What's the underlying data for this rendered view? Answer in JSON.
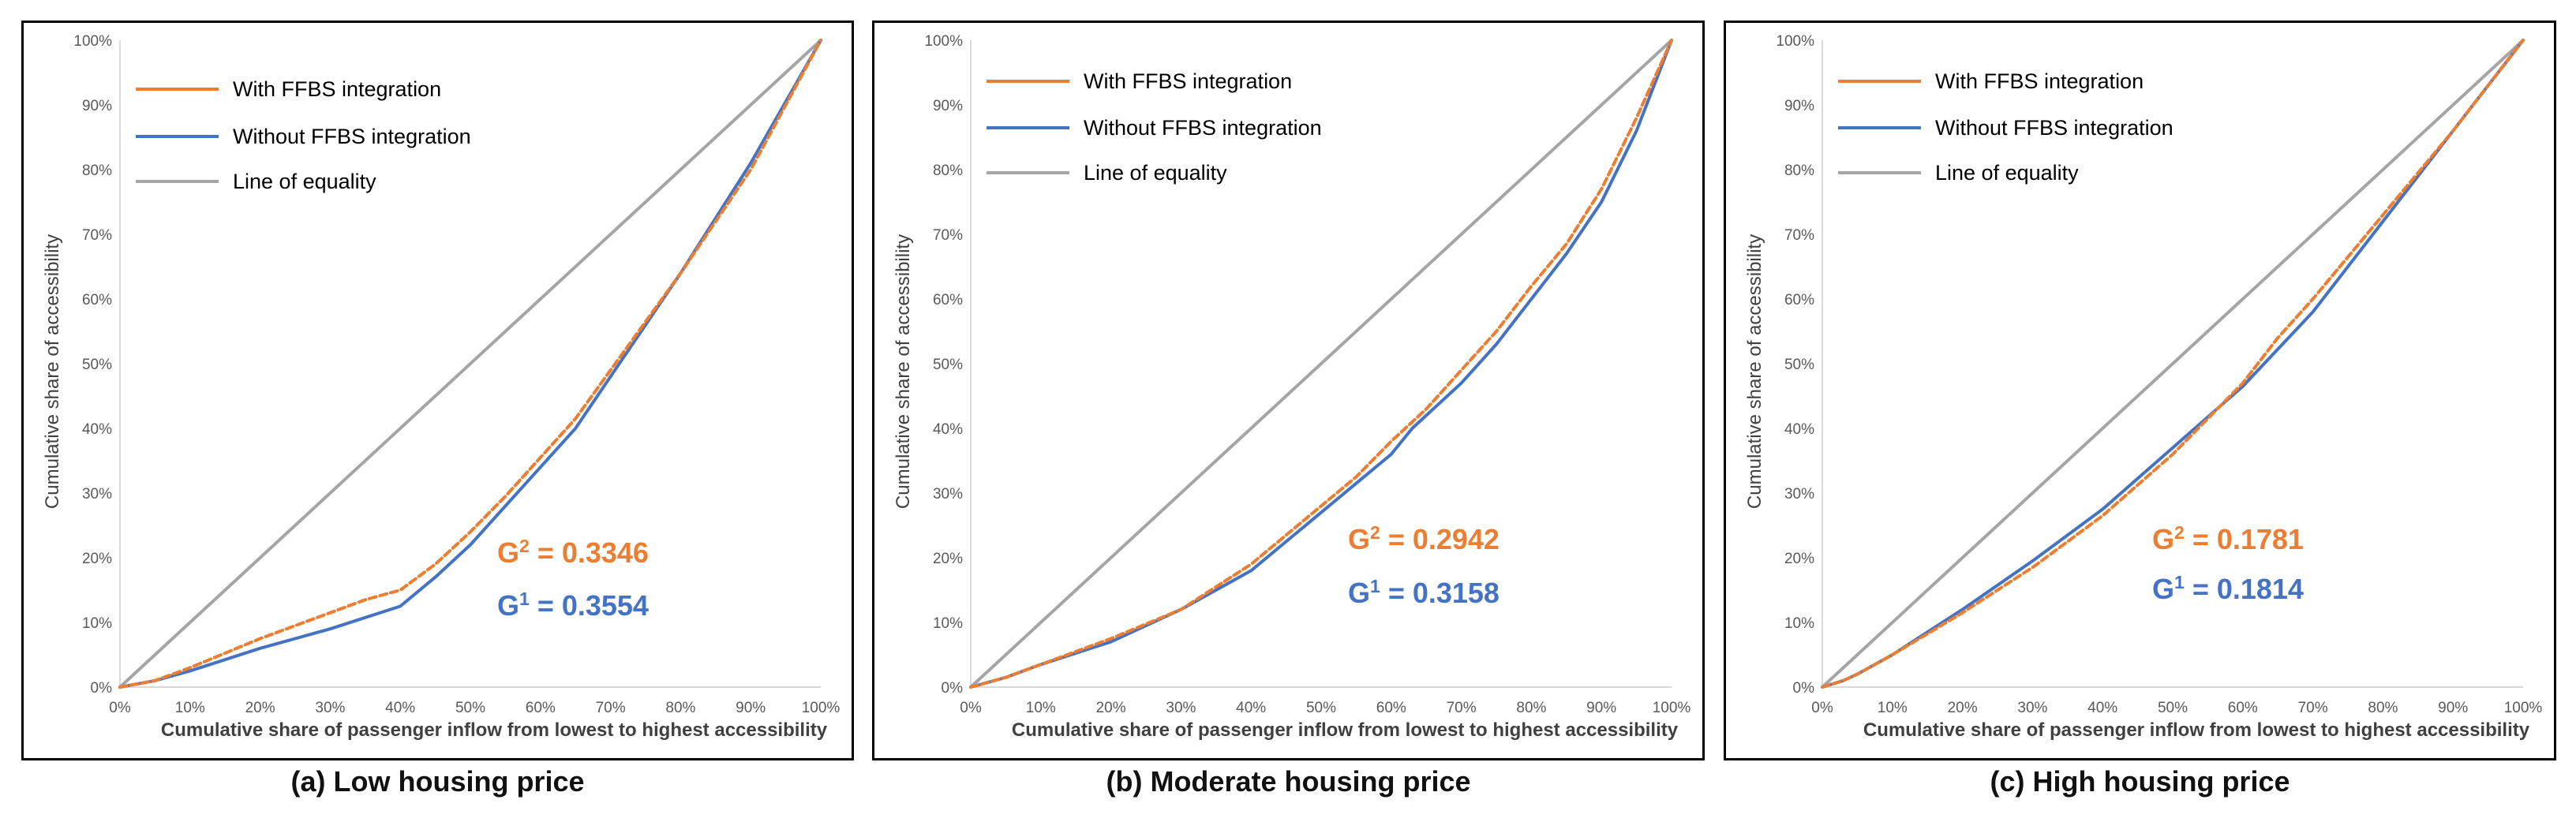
{
  "colors": {
    "with": "#ED7D31",
    "without": "#4472C4",
    "equality": "#A5A5A5",
    "text": "#404040"
  },
  "chart_data": [
    {
      "type": "line",
      "caption": "(a) Low housing price",
      "xlabel": "Cumulative share of passenger inflow from lowest to highest accessibility",
      "ylabel": "Cumulative share of accessibility",
      "xlim": [
        0,
        100
      ],
      "ylim": [
        0,
        100
      ],
      "xticks": [
        "0%",
        "10%",
        "20%",
        "30%",
        "40%",
        "50%",
        "60%",
        "70%",
        "80%",
        "90%",
        "100%"
      ],
      "yticks": [
        "0%",
        "10%",
        "20%",
        "30%",
        "40%",
        "50%",
        "60%",
        "70%",
        "80%",
        "90%",
        "100%"
      ],
      "legend": [
        "With FFBS integration",
        "Without FFBS integration",
        "Line of equality"
      ],
      "series": [
        {
          "name": "With FFBS integration",
          "style": "dashed",
          "x": [
            0,
            5,
            10,
            20,
            30,
            35,
            40,
            45,
            50,
            55,
            60,
            65,
            70,
            80,
            90,
            100
          ],
          "y": [
            0,
            1,
            3,
            7.5,
            11.5,
            13.5,
            15,
            19,
            24,
            29.5,
            35.5,
            41.5,
            49,
            64,
            80,
            100
          ]
        },
        {
          "name": "Without FFBS integration",
          "style": "solid",
          "x": [
            0,
            5,
            10,
            20,
            30,
            40,
            45,
            50,
            55,
            60,
            65,
            70,
            80,
            90,
            100
          ],
          "y": [
            0,
            1,
            2.5,
            6,
            9,
            12.5,
            17,
            22,
            28,
            34,
            40,
            48,
            64,
            81,
            100
          ]
        },
        {
          "name": "Line of equality",
          "style": "solid",
          "x": [
            0,
            100
          ],
          "y": [
            0,
            100
          ]
        }
      ],
      "annotations": {
        "g2_label": "G",
        "g2_sup": "2",
        "g2_value": "= 0.3346",
        "g1_label": "G",
        "g1_sup": "1",
        "g1_value": "= 0.3554"
      }
    },
    {
      "type": "line",
      "caption": "(b) Moderate housing price",
      "xlabel": "Cumulative share of passenger inflow from lowest to highest accessibility",
      "ylabel": "Cumulative share of accessibility",
      "xlim": [
        0,
        100
      ],
      "ylim": [
        0,
        100
      ],
      "xticks": [
        "0%",
        "10%",
        "20%",
        "30%",
        "40%",
        "50%",
        "60%",
        "70%",
        "80%",
        "90%",
        "100%"
      ],
      "yticks": [
        "0%",
        "10%",
        "20%",
        "30%",
        "40%",
        "50%",
        "60%",
        "70%",
        "80%",
        "90%",
        "100%"
      ],
      "legend": [
        "With FFBS integration",
        "Without FFBS integration",
        "Line of equality"
      ],
      "series": [
        {
          "name": "With FFBS integration",
          "style": "dashed",
          "x": [
            0,
            5,
            10,
            20,
            30,
            40,
            45,
            50,
            55,
            60,
            65,
            70,
            75,
            80,
            85,
            90,
            95,
            100
          ],
          "y": [
            0,
            1.5,
            3.5,
            7.5,
            12,
            19,
            23.5,
            28,
            32.5,
            38,
            43,
            49,
            55,
            62,
            68.5,
            77,
            88,
            100
          ]
        },
        {
          "name": "Without FFBS integration",
          "style": "solid",
          "x": [
            0,
            5,
            10,
            20,
            30,
            40,
            45,
            50,
            55,
            60,
            63,
            70,
            75,
            80,
            85,
            90,
            95,
            100
          ],
          "y": [
            0,
            1.5,
            3.5,
            7,
            12,
            18,
            22.5,
            27,
            31.5,
            36,
            40,
            47,
            53,
            60,
            67,
            75,
            86,
            100
          ]
        },
        {
          "name": "Line of equality",
          "style": "solid",
          "x": [
            0,
            100
          ],
          "y": [
            0,
            100
          ]
        }
      ],
      "annotations": {
        "g2_label": "G",
        "g2_sup": "2",
        "g2_value": "= 0.2942",
        "g1_label": "G",
        "g1_sup": "1",
        "g1_value": "= 0.3158"
      }
    },
    {
      "type": "line",
      "caption": "(c) High housing price",
      "xlabel": "Cumulative share of passenger inflow from lowest to highest accessibility",
      "ylabel": "Cumulative share of accessibility",
      "xlim": [
        0,
        100
      ],
      "ylim": [
        0,
        100
      ],
      "xticks": [
        "0%",
        "10%",
        "20%",
        "30%",
        "40%",
        "50%",
        "60%",
        "70%",
        "80%",
        "90%",
        "100%"
      ],
      "yticks": [
        "0%",
        "10%",
        "20%",
        "30%",
        "40%",
        "50%",
        "60%",
        "70%",
        "80%",
        "90%",
        "100%"
      ],
      "legend": [
        "With FFBS integration",
        "Without FFBS integration",
        "Line of equality"
      ],
      "series": [
        {
          "name": "With FFBS integration",
          "style": "dashed",
          "x": [
            0,
            3,
            5,
            10,
            20,
            30,
            40,
            50,
            60,
            65,
            70,
            80,
            90,
            100
          ],
          "y": [
            0,
            1,
            2,
            5,
            11.5,
            18.5,
            26.5,
            36,
            47,
            54,
            60,
            73,
            86,
            100
          ]
        },
        {
          "name": "Without FFBS integration",
          "style": "solid",
          "x": [
            0,
            3,
            5,
            10,
            20,
            30,
            40,
            50,
            60,
            70,
            80,
            90,
            100
          ],
          "y": [
            0,
            1,
            2,
            5,
            12,
            19.5,
            27.5,
            37,
            46.5,
            58,
            72,
            86,
            100
          ]
        },
        {
          "name": "Line of equality",
          "style": "solid",
          "x": [
            0,
            100
          ],
          "y": [
            0,
            100
          ]
        }
      ],
      "annotations": {
        "g2_label": "G",
        "g2_sup": "2",
        "g2_value": "= 0.1781",
        "g1_label": "G",
        "g1_sup": "1",
        "g1_value": "= 0.1814"
      }
    }
  ]
}
